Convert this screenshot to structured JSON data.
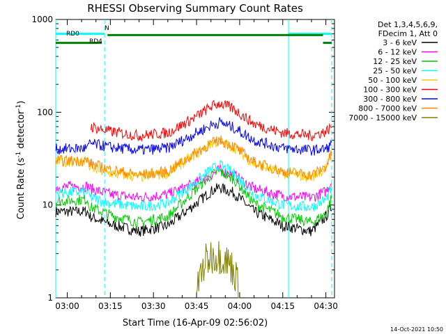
{
  "chart_data": {
    "type": "line",
    "title": "RHESSI Observing Summary Count Rates",
    "xlabel": "Start Time (16-Apr-09 02:56:02)",
    "ylabel_main": "Count Rate (s",
    "ylabel_sup1": "-1",
    "ylabel_mid": " detector",
    "ylabel_sup2": "-1",
    "ylabel_end": ")",
    "yscale": "log",
    "ylim": [
      1,
      1000
    ],
    "xlim_minutes": [
      "02:56",
      "04:33"
    ],
    "x_ticks": [
      {
        "label": "03:00",
        "t": "03:00"
      },
      {
        "label": "03:15",
        "t": "03:15"
      },
      {
        "label": "03:30",
        "t": "03:30"
      },
      {
        "label": "03:45",
        "t": "03:45"
      },
      {
        "label": "04:00",
        "t": "04:00"
      },
      {
        "label": "04:15",
        "t": "04:15"
      },
      {
        "label": "04:30",
        "t": "04:30"
      }
    ],
    "y_ticks": [
      {
        "label": "1",
        "v": 1
      },
      {
        "label": "10",
        "v": 10
      },
      {
        "label": "100",
        "v": 100
      },
      {
        "label": "1000",
        "v": 1000
      }
    ],
    "legend_header": [
      "Det 1,3,4,5,6,9,",
      "FDecim 1, Att 0"
    ],
    "legend_placement": "right",
    "series": [
      {
        "name": "3 - 6 keV",
        "color": "#000000",
        "x": [
          "02:56",
          "03:07",
          "03:08",
          "03:15",
          "03:25",
          "03:35",
          "03:45",
          "03:50",
          "03:53",
          "03:58",
          "04:05",
          "04:15",
          "04:25",
          "04:30",
          "04:32"
        ],
        "values": [
          8.5,
          8.5,
          7.5,
          6.2,
          5.2,
          6.0,
          10.5,
          14.0,
          15.5,
          13.5,
          8.5,
          6.0,
          5.2,
          7.5,
          9.5
        ]
      },
      {
        "name": "6 - 12 keV",
        "color": "#ff00ff",
        "x": [
          "02:56",
          "03:07",
          "03:08",
          "03:15",
          "03:25",
          "03:35",
          "03:45",
          "03:50",
          "03:53",
          "03:58",
          "04:05",
          "04:15",
          "04:25",
          "04:30",
          "04:32"
        ],
        "values": [
          15.5,
          16.0,
          15.0,
          13.0,
          12.0,
          13.0,
          17.5,
          21.0,
          24.0,
          21.0,
          15.0,
          12.5,
          12.0,
          14.0,
          18.0
        ]
      },
      {
        "name": "12 - 25 keV",
        "color": "#00cc00",
        "x": [
          "02:56",
          "03:07",
          "03:08",
          "03:15",
          "03:25",
          "03:35",
          "03:45",
          "03:50",
          "03:53",
          "03:58",
          "04:05",
          "04:15",
          "04:25",
          "04:30",
          "04:32"
        ],
        "values": [
          11.0,
          11.5,
          9.5,
          7.8,
          6.5,
          7.5,
          15.0,
          21.0,
          23.0,
          19.0,
          10.5,
          7.5,
          6.5,
          8.0,
          12.0
        ]
      },
      {
        "name": "25 - 50 keV",
        "color": "#00ffff",
        "x": [
          "02:56",
          "03:07",
          "03:08",
          "03:15",
          "03:25",
          "03:35",
          "03:45",
          "03:50",
          "03:53",
          "03:58",
          "04:05",
          "04:15",
          "04:25",
          "04:30",
          "04:32"
        ],
        "values": [
          13.5,
          14.0,
          12.0,
          10.5,
          9.5,
          10.5,
          18.0,
          24.0,
          27.0,
          22.0,
          13.0,
          10.0,
          9.5,
          11.5,
          15.0
        ]
      },
      {
        "name": "50 - 100 keV",
        "color": "#ffcc00",
        "x": [
          "02:56",
          "03:07",
          "03:08",
          "03:15",
          "03:25",
          "03:35",
          "03:45",
          "03:50",
          "03:53",
          "03:58",
          "04:05",
          "04:15",
          "04:25",
          "04:30",
          "04:32"
        ],
        "values": [
          29.0,
          30.0,
          25.0,
          22.0,
          20.0,
          22.0,
          36.0,
          46.0,
          48.0,
          42.0,
          28.0,
          22.0,
          20.0,
          25.0,
          34.0
        ]
      },
      {
        "name": "100 - 300 keV",
        "color": "#ff0000",
        "x": [
          "02:56",
          "03:07",
          "03:08",
          "03:15",
          "03:25",
          "03:35",
          "03:45",
          "03:50",
          "03:53",
          "03:58",
          "04:05",
          "04:15",
          "04:25",
          "04:30",
          "04:32"
        ],
        "values": [
          0,
          0,
          70.0,
          62.0,
          56.0,
          60.0,
          90.0,
          115.0,
          125.0,
          108.0,
          75.0,
          60.0,
          56.0,
          62.0,
          70.0
        ]
      },
      {
        "name": "300 - 800 keV",
        "color": "#0000ff",
        "x": [
          "02:56",
          "03:07",
          "03:08",
          "03:15",
          "03:25",
          "03:35",
          "03:45",
          "03:50",
          "03:53",
          "03:58",
          "04:05",
          "04:15",
          "04:25",
          "04:30",
          "04:32"
        ],
        "values": [
          40.0,
          41.0,
          46.0,
          42.0,
          39.0,
          41.0,
          60.0,
          72.0,
          78.0,
          68.0,
          50.0,
          41.0,
          39.0,
          40.0,
          45.0
        ]
      },
      {
        "name": "800 - 7000 keV",
        "color": "#ff8800",
        "x": [
          "02:56",
          "03:07",
          "03:08",
          "03:15",
          "03:25",
          "03:35",
          "03:45",
          "03:50",
          "03:53",
          "03:58",
          "04:05",
          "04:15",
          "04:25",
          "04:30",
          "04:32"
        ],
        "values": [
          30.0,
          30.0,
          28.0,
          24.0,
          21.0,
          23.0,
          37.0,
          46.0,
          50.0,
          43.0,
          29.0,
          23.0,
          21.0,
          26.0,
          36.0
        ]
      },
      {
        "name": "7000 - 15000 keV",
        "color": "#808000",
        "x": [
          "03:45",
          "03:47",
          "03:48",
          "03:50",
          "03:52",
          "03:54",
          "03:56",
          "03:58",
          "04:00"
        ],
        "values": [
          1.2,
          2.0,
          2.4,
          2.8,
          2.9,
          2.8,
          2.4,
          2.0,
          1.2
        ]
      }
    ],
    "vertical_lines": [
      {
        "t": "02:56",
        "style": "solid",
        "color": "#00ffff"
      },
      {
        "t": "03:13",
        "style": "dashed",
        "color": "#00ffff"
      },
      {
        "t": "04:17",
        "style": "solid",
        "color": "#00ffff"
      },
      {
        "t": "04:32",
        "style": "dashed",
        "color": "#00ffff"
      }
    ],
    "flag_bars": [
      {
        "label": "RD0",
        "color": "#00ffff",
        "segments": [
          [
            "02:56",
            "03:13"
          ],
          [
            "04:17",
            "04:32"
          ]
        ],
        "level": 700
      },
      {
        "label": "N",
        "color": "#00ffff",
        "segments": [],
        "level": 700
      },
      {
        "label": "RD4",
        "color": "#008000",
        "segments": [
          [
            "02:56",
            "03:12"
          ],
          [
            "04:29",
            "04:32"
          ]
        ],
        "level": 560
      },
      {
        "label": "",
        "color": "#008000",
        "segments": [
          [
            "03:14",
            "04:29"
          ]
        ],
        "level": 680
      }
    ]
  },
  "footer_timestamp": "14-Oct-2021 10:50"
}
